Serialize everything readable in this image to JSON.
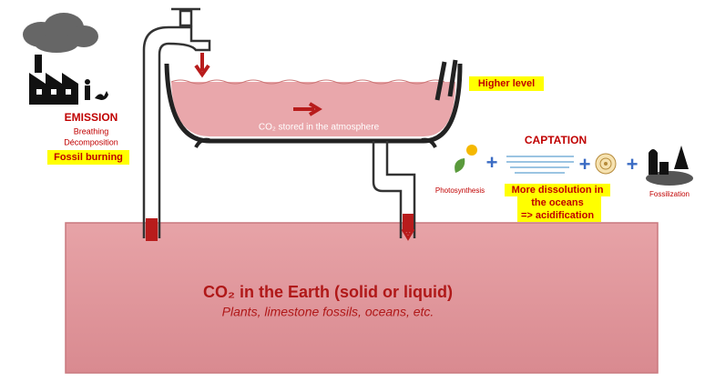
{
  "emission": {
    "title": "EMISSION",
    "items": [
      "Breathing",
      "Décomposition"
    ],
    "highlight": "Fossil burning"
  },
  "bathtub": {
    "level": "Higher level",
    "label": "CO₂ stored in the atmosphere"
  },
  "captation": {
    "title": "CAPTATION",
    "photosynthesis": "Photosynthesis",
    "dissolution": [
      "More dissolution in",
      "the oceans",
      "=> acidification"
    ],
    "fossilization": "Fossilization"
  },
  "earth": {
    "title": "CO₂ in the Earth (solid or liquid)",
    "subtitle": "Plants, limestone fossils, oceans, etc."
  }
}
